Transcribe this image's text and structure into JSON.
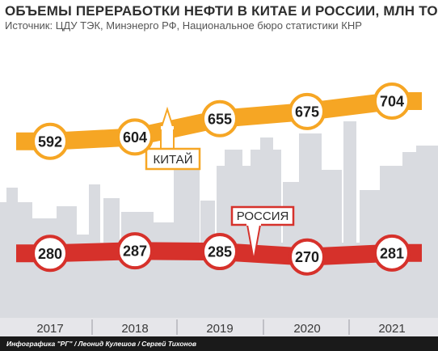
{
  "header": {
    "title": "ОБЪЕМЫ ПЕРЕРАБОТКИ НЕФТИ В КИТАЕ И РОССИИ, МЛН ТОНН",
    "source": "Источник: ЦДУ ТЭК, Минэнерго РФ, Национальное бюро статистики КНР"
  },
  "footer": {
    "credits": "Инфографика \"РГ\" / Леонид Кулешов / Сергей Тихонов"
  },
  "colors": {
    "china": "#f6a624",
    "russia": "#d6312b",
    "background_silhouette": "#d9dbe0",
    "axis_band": "#e6e6ea"
  },
  "chart_data": {
    "type": "line",
    "title": "ОБЪЕМЫ ПЕРЕРАБОТКИ НЕФТИ В КИТАЕ И РОССИИ, МЛН ТОНН",
    "x": [
      "2017",
      "2018",
      "2019",
      "2020",
      "2021"
    ],
    "series": [
      {
        "name": "КИТАЙ",
        "values": [
          592,
          604,
          655,
          675,
          704
        ],
        "color": "#f6a624"
      },
      {
        "name": "РОССИЯ",
        "values": [
          280,
          287,
          285,
          270,
          281
        ],
        "color": "#d6312b"
      }
    ],
    "data_labels": true,
    "grid": false
  }
}
